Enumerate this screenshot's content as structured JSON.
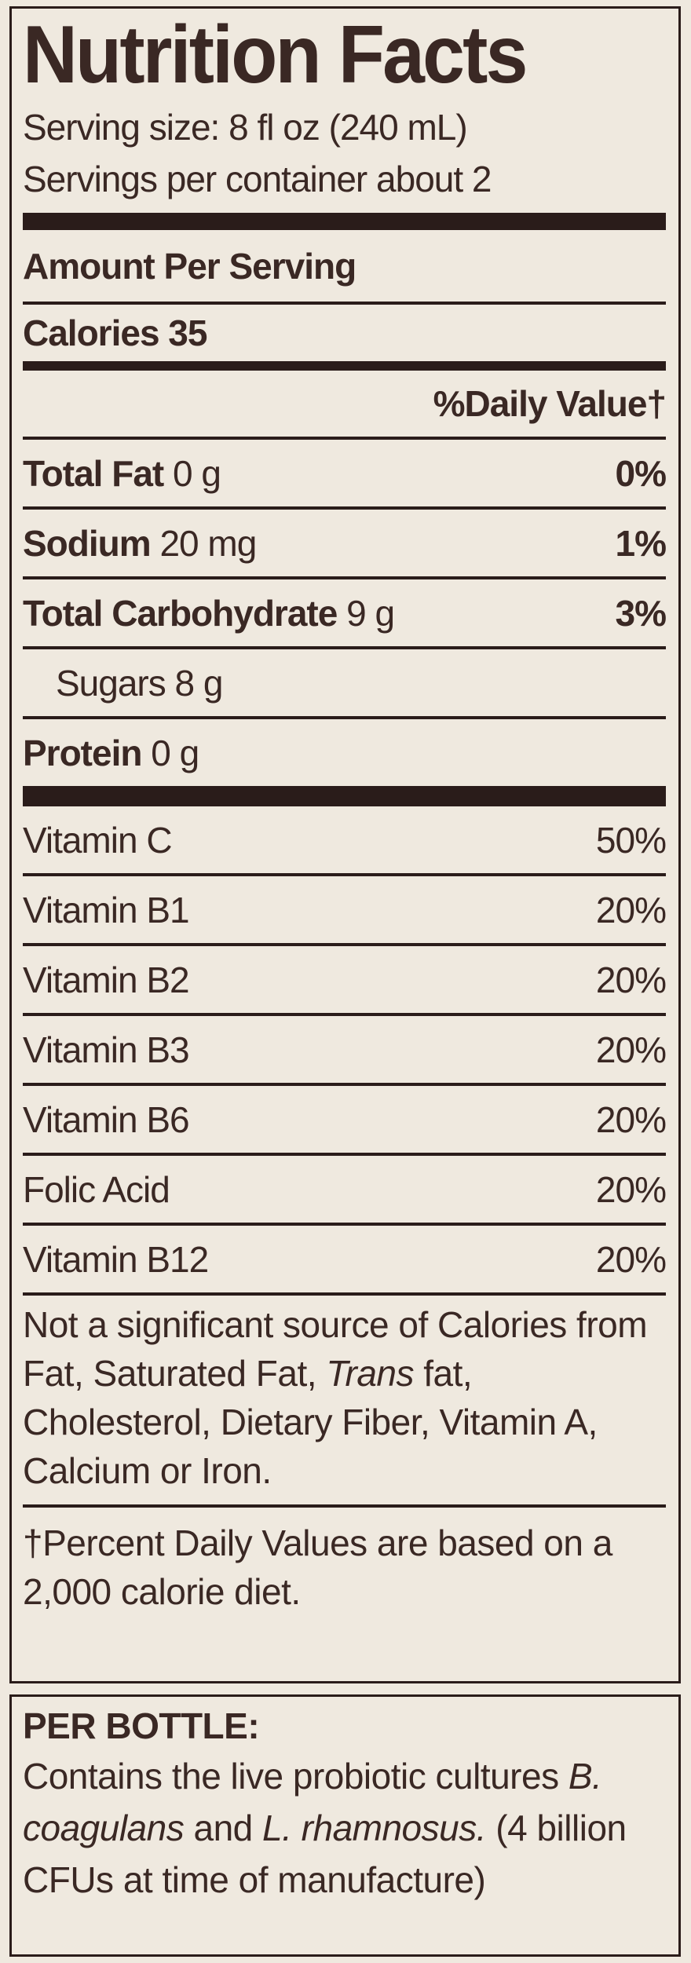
{
  "title": "Nutrition Facts",
  "serving_size": "Serving size: 8 fl oz (240 mL)",
  "servings_per_container": "Servings per container about 2",
  "amount_per_serving": "Amount Per Serving",
  "calories": "Calories 35",
  "daily_value_header": "%Daily Value†",
  "nutrients": [
    {
      "name": "Total Fat",
      "amount": "0 g",
      "dv": "0%"
    },
    {
      "name": "Sodium",
      "amount": "20 mg",
      "dv": "1%"
    },
    {
      "name": "Total Carbohydrate",
      "amount": "9 g",
      "dv": "3%"
    },
    {
      "name": "Sugars",
      "amount": "8 g",
      "indent": true
    },
    {
      "name": "Protein",
      "amount": "0 g"
    }
  ],
  "vitamins": [
    {
      "name": "Vitamin C",
      "dv": "50%"
    },
    {
      "name": "Vitamin B1",
      "dv": "20%"
    },
    {
      "name": "Vitamin B2",
      "dv": "20%"
    },
    {
      "name": "Vitamin B3",
      "dv": "20%"
    },
    {
      "name": "Vitamin B6",
      "dv": "20%"
    },
    {
      "name": "Folic Acid",
      "dv": "20%"
    },
    {
      "name": "Vitamin B12",
      "dv": "20%"
    }
  ],
  "note": [
    {
      "text": "Not a significant source of Calories from Fat, Saturated Fat, "
    },
    {
      "text": "Trans",
      "italic": true
    },
    {
      "text": " fat, Cholesterol, Dietary Fiber, Vitamin A, Calcium or Iron."
    }
  ],
  "footnote": "†Percent Daily Values are based on a 2,000 calorie diet.",
  "per_bottle": {
    "heading": "PER BOTTLE:",
    "text": [
      {
        "text": "Contains the live probiotic cultures "
      },
      {
        "text": "B. coagulans",
        "italic": true
      },
      {
        "text": " and "
      },
      {
        "text": "L. rhamnosus.",
        "italic": true
      },
      {
        "text": " (4 billion CFUs at time of manufacture)"
      }
    ]
  }
}
